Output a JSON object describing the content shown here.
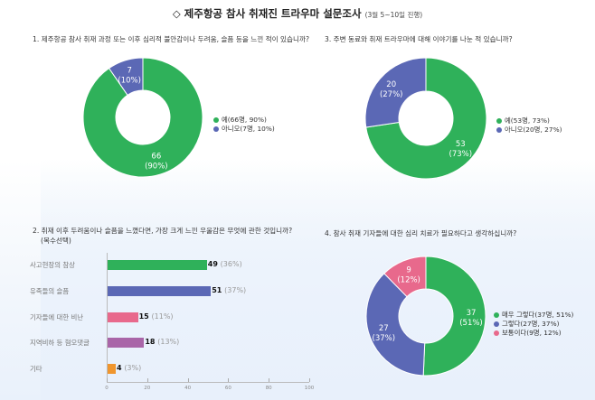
{
  "title": {
    "main": "◇ 제주항공 참사 취재진 트라우마 설문조사",
    "sub": "(3월 5~10일 진행)"
  },
  "questions": {
    "q1": "1. 제주항공 참사 취재 과정 또는 이후 심리적 불안감이나 두려움, 슬픔 등을 느낀 적이 있습니까?",
    "q2": "2. 취재 이후 두려움이나 슬픔을 느꼈다면, 가장 크게 느낀 우울감은 무엇에 관한 것입니까?",
    "q2_note": "(복수선택)",
    "q3": "3. 주변 동료와 취재 트라우마에 대해 이야기를 나눈 적 있습니까?",
    "q4": "4. 참사 취재 기자들에 대한 심리 치료가 필요하다고 생각하십니까?"
  },
  "colors": {
    "green": "#2fb15a",
    "blue": "#5b68b5",
    "pink": "#e8698c",
    "purple": "#a965a8",
    "orange": "#f0962e"
  },
  "chart_data": [
    {
      "id": "q1",
      "type": "pie",
      "donut": true,
      "title": "1. 제주항공 참사 취재 과정 또는 이후 심리적 불안감이나 두려움, 슬픔 등을 느낀 적이 있습니까?",
      "categories": [
        "예",
        "아니오"
      ],
      "values": [
        66,
        7
      ],
      "percents": [
        90,
        10
      ],
      "slice_labels": [
        [
          "66",
          "(90%)"
        ],
        [
          "7",
          "(10%)"
        ]
      ],
      "legend": [
        "예(66명, 90%)",
        "아니오(7명, 10%)"
      ],
      "colors": [
        "#2fb15a",
        "#5b68b5"
      ],
      "legend_position": "right"
    },
    {
      "id": "q2",
      "type": "bar",
      "orientation": "horizontal",
      "title": "2. 취재 이후 두려움이나 슬픔을 느꼈다면, 가장 크게 느낀 우울감은 무엇에 관한 것입니까? (복수선택)",
      "categories": [
        "사고현장의 참상",
        "유족들의 슬픔",
        "기자들에 대한 비난",
        "지역비하 등 혐오댓글",
        "기타"
      ],
      "values": [
        49,
        51,
        15,
        18,
        4
      ],
      "percents": [
        "(36%)",
        "(37%)",
        "(11%)",
        "(13%)",
        "(3%)"
      ],
      "colors": [
        "#2fb15a",
        "#5b68b5",
        "#e8698c",
        "#a965a8",
        "#f0962e"
      ],
      "xlim": [
        0,
        100
      ],
      "xticks": [
        "0",
        "20",
        "40",
        "60",
        "80",
        "100"
      ],
      "grid": false
    },
    {
      "id": "q3",
      "type": "pie",
      "donut": true,
      "title": "3. 주변 동료와 취재 트라우마에 대해 이야기를 나눈 적 있습니까?",
      "categories": [
        "예",
        "아니오"
      ],
      "values": [
        53,
        20
      ],
      "percents": [
        73,
        27
      ],
      "slice_labels": [
        [
          "53",
          "(73%)"
        ],
        [
          "20",
          "(27%)"
        ]
      ],
      "legend": [
        "예(53명, 73%)",
        "아니오(20명, 27%)"
      ],
      "colors": [
        "#2fb15a",
        "#5b68b5"
      ],
      "legend_position": "right"
    },
    {
      "id": "q4",
      "type": "pie",
      "donut": true,
      "title": "4. 참사 취재 기자들에 대한 심리 치료가 필요하다고 생각하십니까?",
      "categories": [
        "매우 그렇다",
        "그렇다",
        "보통이다"
      ],
      "values": [
        37,
        27,
        9
      ],
      "percents": [
        51,
        37,
        12
      ],
      "slice_labels": [
        [
          "37",
          "(51%)"
        ],
        [
          "27",
          "(37%)"
        ],
        [
          "9",
          "(12%)"
        ]
      ],
      "legend": [
        "매우 그렇다(37명, 51%)",
        "그렇다(27명, 37%)",
        "보통이다(9명, 12%)"
      ],
      "colors": [
        "#2fb15a",
        "#5b68b5",
        "#e8698c"
      ],
      "legend_position": "right"
    }
  ]
}
